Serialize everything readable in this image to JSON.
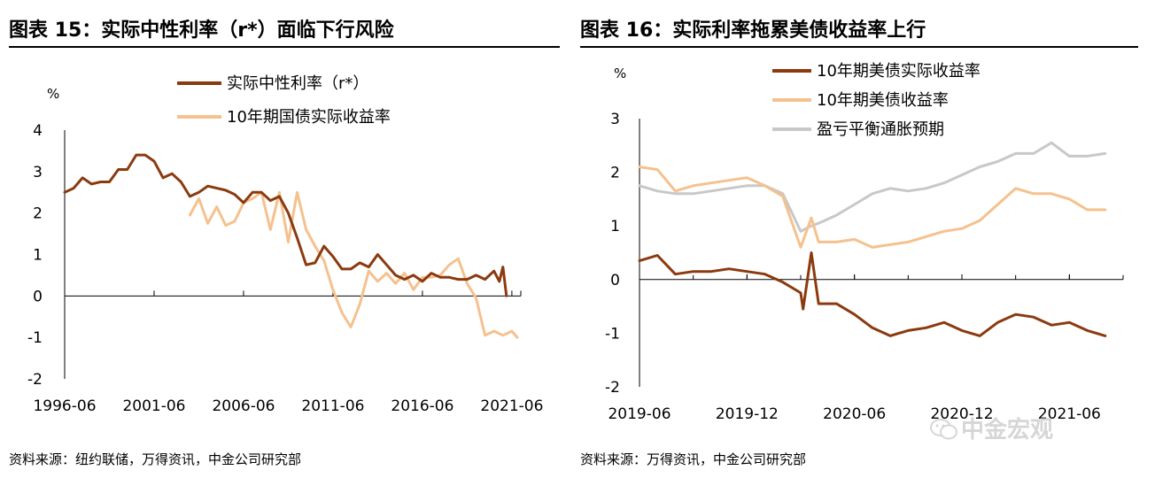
{
  "charts": [
    {
      "title": "图表 15：实际中性利率（r*）面临下行风险",
      "source": "资料来源：纽约联储，万得资讯，中金公司研究部"
    },
    {
      "title": "图表 16：实际利率拖累美债收益率上行",
      "source": "资料来源：万得资讯，中金公司研究部"
    }
  ],
  "watermark": "中金宏观",
  "chart_data": [
    {
      "type": "line",
      "ylabel": "%",
      "ylim": [
        -2,
        4
      ],
      "yticks": [
        "4",
        "3",
        "2",
        "1",
        "0",
        "-1",
        "-2"
      ],
      "xlim": [
        1996.5,
        2022.0
      ],
      "xticks": [
        {
          "label": "1996-06",
          "x": 1996.5
        },
        {
          "label": "2001-06",
          "x": 2001.5
        },
        {
          "label": "2006-06",
          "x": 2006.5
        },
        {
          "label": "2011-06",
          "x": 2011.5
        },
        {
          "label": "2016-06",
          "x": 2016.5
        },
        {
          "label": "2021-06",
          "x": 2021.5
        }
      ],
      "series": [
        {
          "name": "实际中性利率（r*）",
          "color": "#8B3A0F",
          "points": [
            [
              1996.5,
              2.5
            ],
            [
              1997.0,
              2.6
            ],
            [
              1997.5,
              2.85
            ],
            [
              1998.0,
              2.7
            ],
            [
              1998.5,
              2.75
            ],
            [
              1999.0,
              2.75
            ],
            [
              1999.5,
              3.05
            ],
            [
              2000.0,
              3.05
            ],
            [
              2000.5,
              3.4
            ],
            [
              2001.0,
              3.4
            ],
            [
              2001.5,
              3.25
            ],
            [
              2002.0,
              2.85
            ],
            [
              2002.5,
              2.95
            ],
            [
              2003.0,
              2.75
            ],
            [
              2003.5,
              2.4
            ],
            [
              2004.0,
              2.5
            ],
            [
              2004.5,
              2.65
            ],
            [
              2005.0,
              2.6
            ],
            [
              2005.5,
              2.55
            ],
            [
              2006.0,
              2.45
            ],
            [
              2006.5,
              2.25
            ],
            [
              2007.0,
              2.5
            ],
            [
              2007.5,
              2.5
            ],
            [
              2008.0,
              2.3
            ],
            [
              2008.5,
              2.4
            ],
            [
              2009.0,
              2.0
            ],
            [
              2009.5,
              1.4
            ],
            [
              2010.0,
              0.75
            ],
            [
              2010.5,
              0.8
            ],
            [
              2011.0,
              1.2
            ],
            [
              2011.5,
              0.95
            ],
            [
              2012.0,
              0.65
            ],
            [
              2012.5,
              0.65
            ],
            [
              2013.0,
              0.8
            ],
            [
              2013.5,
              0.7
            ],
            [
              2014.0,
              1.0
            ],
            [
              2014.5,
              0.75
            ],
            [
              2015.0,
              0.5
            ],
            [
              2015.5,
              0.4
            ],
            [
              2016.0,
              0.5
            ],
            [
              2016.5,
              0.35
            ],
            [
              2017.0,
              0.55
            ],
            [
              2017.5,
              0.45
            ],
            [
              2018.0,
              0.45
            ],
            [
              2018.5,
              0.4
            ],
            [
              2019.0,
              0.4
            ],
            [
              2019.5,
              0.5
            ],
            [
              2020.0,
              0.4
            ],
            [
              2020.5,
              0.6
            ],
            [
              2020.8,
              0.35
            ],
            [
              2021.0,
              0.7
            ],
            [
              2021.2,
              0.0
            ]
          ]
        },
        {
          "name": "10年期国债实际收益率",
          "color": "#F5C18E",
          "points": [
            [
              2003.5,
              1.95
            ],
            [
              2004.0,
              2.35
            ],
            [
              2004.5,
              1.75
            ],
            [
              2005.0,
              2.15
            ],
            [
              2005.5,
              1.7
            ],
            [
              2006.0,
              1.8
            ],
            [
              2006.5,
              2.25
            ],
            [
              2007.0,
              2.35
            ],
            [
              2007.5,
              2.5
            ],
            [
              2008.0,
              1.6
            ],
            [
              2008.5,
              2.5
            ],
            [
              2009.0,
              1.3
            ],
            [
              2009.5,
              2.5
            ],
            [
              2010.0,
              1.6
            ],
            [
              2010.5,
              1.2
            ],
            [
              2011.0,
              0.85
            ],
            [
              2011.5,
              0.15
            ],
            [
              2012.0,
              -0.4
            ],
            [
              2012.5,
              -0.75
            ],
            [
              2013.0,
              -0.2
            ],
            [
              2013.5,
              0.6
            ],
            [
              2014.0,
              0.35
            ],
            [
              2014.5,
              0.55
            ],
            [
              2015.0,
              0.3
            ],
            [
              2015.5,
              0.55
            ],
            [
              2016.0,
              0.15
            ],
            [
              2016.5,
              0.45
            ],
            [
              2017.0,
              0.45
            ],
            [
              2017.5,
              0.5
            ],
            [
              2018.0,
              0.75
            ],
            [
              2018.5,
              0.9
            ],
            [
              2019.0,
              0.3
            ],
            [
              2019.5,
              -0.05
            ],
            [
              2020.0,
              -0.95
            ],
            [
              2020.5,
              -0.85
            ],
            [
              2021.0,
              -0.95
            ],
            [
              2021.5,
              -0.85
            ],
            [
              2021.8,
              -1.0
            ]
          ]
        }
      ]
    },
    {
      "type": "line",
      "ylabel": "%",
      "ylim": [
        -2,
        3
      ],
      "yticks": [
        "3",
        "2",
        "1",
        "0",
        "-1",
        "-2"
      ],
      "xlim": [
        "2019-06",
        "2021-09"
      ],
      "xticks": [
        "2019-06",
        "2019-12",
        "2020-06",
        "2020-12",
        "2021-06"
      ],
      "series": [
        {
          "name": "10年期美债实际收益率",
          "color": "#8B3A0F",
          "points": [
            [
              "2019-06-01",
              0.35
            ],
            [
              "2019-07-01",
              0.45
            ],
            [
              "2019-08-01",
              0.1
            ],
            [
              "2019-09-01",
              0.15
            ],
            [
              "2019-10-01",
              0.15
            ],
            [
              "2019-11-01",
              0.2
            ],
            [
              "2019-12-01",
              0.15
            ],
            [
              "2020-01-01",
              0.1
            ],
            [
              "2020-02-01",
              -0.05
            ],
            [
              "2020-03-01",
              -0.25
            ],
            [
              "2020-03-05",
              -0.55
            ],
            [
              "2020-03-19",
              0.5
            ],
            [
              "2020-04-01",
              -0.45
            ],
            [
              "2020-05-01",
              -0.45
            ],
            [
              "2020-06-01",
              -0.65
            ],
            [
              "2020-07-01",
              -0.9
            ],
            [
              "2020-08-01",
              -1.05
            ],
            [
              "2020-09-01",
              -0.95
            ],
            [
              "2020-10-01",
              -0.9
            ],
            [
              "2020-11-01",
              -0.8
            ],
            [
              "2020-12-01",
              -0.95
            ],
            [
              "2021-01-01",
              -1.05
            ],
            [
              "2021-02-01",
              -0.8
            ],
            [
              "2021-03-01",
              -0.65
            ],
            [
              "2021-04-01",
              -0.7
            ],
            [
              "2021-05-01",
              -0.85
            ],
            [
              "2021-06-01",
              -0.8
            ],
            [
              "2021-07-01",
              -0.95
            ],
            [
              "2021-08-01",
              -1.05
            ]
          ]
        },
        {
          "name": "10年期美债收益率",
          "color": "#F5C18E",
          "points": [
            [
              "2019-06-01",
              2.1
            ],
            [
              "2019-07-01",
              2.05
            ],
            [
              "2019-08-01",
              1.65
            ],
            [
              "2019-09-01",
              1.75
            ],
            [
              "2019-10-01",
              1.8
            ],
            [
              "2019-11-01",
              1.85
            ],
            [
              "2019-12-01",
              1.9
            ],
            [
              "2020-01-01",
              1.75
            ],
            [
              "2020-02-01",
              1.55
            ],
            [
              "2020-03-01",
              0.6
            ],
            [
              "2020-03-19",
              1.15
            ],
            [
              "2020-04-01",
              0.7
            ],
            [
              "2020-05-01",
              0.7
            ],
            [
              "2020-06-01",
              0.75
            ],
            [
              "2020-07-01",
              0.6
            ],
            [
              "2020-08-01",
              0.65
            ],
            [
              "2020-09-01",
              0.7
            ],
            [
              "2020-10-01",
              0.8
            ],
            [
              "2020-11-01",
              0.9
            ],
            [
              "2020-12-01",
              0.95
            ],
            [
              "2021-01-01",
              1.1
            ],
            [
              "2021-02-01",
              1.4
            ],
            [
              "2021-03-01",
              1.7
            ],
            [
              "2021-04-01",
              1.6
            ],
            [
              "2021-05-01",
              1.6
            ],
            [
              "2021-06-01",
              1.5
            ],
            [
              "2021-07-01",
              1.3
            ],
            [
              "2021-08-01",
              1.3
            ]
          ]
        },
        {
          "name": "盈亏平衡通胀预期",
          "color": "#C8C8C8",
          "points": [
            [
              "2019-06-01",
              1.75
            ],
            [
              "2019-07-01",
              1.65
            ],
            [
              "2019-08-01",
              1.6
            ],
            [
              "2019-09-01",
              1.6
            ],
            [
              "2019-10-01",
              1.65
            ],
            [
              "2019-11-01",
              1.7
            ],
            [
              "2019-12-01",
              1.75
            ],
            [
              "2020-01-01",
              1.75
            ],
            [
              "2020-02-01",
              1.6
            ],
            [
              "2020-03-01",
              0.9
            ],
            [
              "2020-03-19",
              1.0
            ],
            [
              "2020-04-01",
              1.05
            ],
            [
              "2020-05-01",
              1.2
            ],
            [
              "2020-06-01",
              1.4
            ],
            [
              "2020-07-01",
              1.6
            ],
            [
              "2020-08-01",
              1.7
            ],
            [
              "2020-09-01",
              1.65
            ],
            [
              "2020-10-01",
              1.7
            ],
            [
              "2020-11-01",
              1.8
            ],
            [
              "2020-12-01",
              1.95
            ],
            [
              "2021-01-01",
              2.1
            ],
            [
              "2021-02-01",
              2.2
            ],
            [
              "2021-03-01",
              2.35
            ],
            [
              "2021-04-01",
              2.35
            ],
            [
              "2021-05-01",
              2.55
            ],
            [
              "2021-06-01",
              2.3
            ],
            [
              "2021-07-01",
              2.3
            ],
            [
              "2021-08-01",
              2.35
            ]
          ]
        }
      ]
    }
  ]
}
